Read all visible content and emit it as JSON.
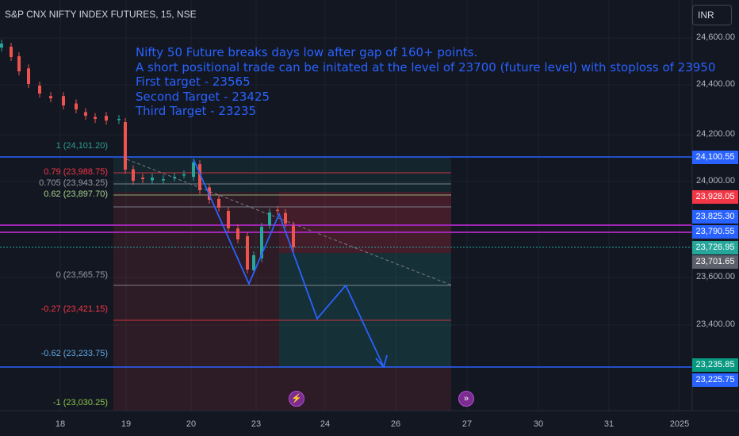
{
  "header": {
    "symbol_title": "S&P CNX NIFTY INDEX FUTURES, 15, NSE"
  },
  "currency_button": {
    "label": "INR"
  },
  "annotation": {
    "lines": [
      "Nifty 50 Future breaks days low after gap of 160+ points.",
      "A short positional trade can be initated at the level of 23700 (future level) with stoploss of 23950",
      "First target - 23565",
      "Second Target - 23425",
      "Third Target - 23235"
    ]
  },
  "fib_levels": [
    {
      "label": "1 (24,101.20)",
      "color": "#2a9d8f"
    },
    {
      "label": "0.79 (23,988.75)",
      "color": "#f23645"
    },
    {
      "label": "0.705 (23,943.25)",
      "color": "#9598a1"
    },
    {
      "label": "0.62 (23,897.70)",
      "color": "#a8d08d"
    },
    {
      "label": "0 (23,565.75)",
      "color": "#9598a1"
    },
    {
      "label": "-0.27 (23,421.15)",
      "color": "#f23645"
    },
    {
      "label": "-0.62 (23,233.75)",
      "color": "#5da7e0"
    },
    {
      "label": "-1 (23,030.25)",
      "color": "#8bc34a"
    }
  ],
  "price_axis": {
    "ticks": [
      "24,600.00",
      "24,400.00",
      "24,200.00",
      "24,000.00",
      "23,600.00",
      "23,400.00"
    ],
    "badges": [
      {
        "label": "24,100.55",
        "color": "#2962ff"
      },
      {
        "label": "23,928.05",
        "color": "#f23645"
      },
      {
        "label": "23,825.30",
        "color": "#2962ff"
      },
      {
        "label": "23,790.55",
        "color": "#2962ff"
      },
      {
        "label": "23,726.95",
        "color": "#26a69a"
      },
      {
        "label": "23,701.65",
        "color": "#5d606b"
      },
      {
        "label": "23,235.85",
        "color": "#089981"
      },
      {
        "label": "23,225.75",
        "color": "#2962ff"
      }
    ]
  },
  "time_axis": {
    "ticks": [
      "18",
      "19",
      "20",
      "23",
      "24",
      "26",
      "27",
      "30",
      "31",
      "2025"
    ]
  },
  "events": [
    {
      "icon": "lightning-event-icon"
    },
    {
      "icon": "fast-forward-event-icon"
    }
  ]
}
